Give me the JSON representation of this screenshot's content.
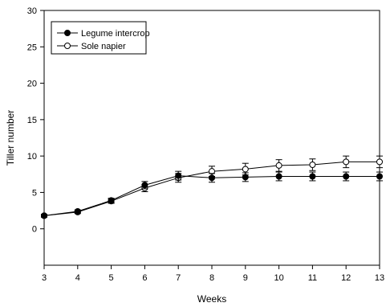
{
  "chart_data": {
    "type": "line",
    "xlabel": "Weeks",
    "ylabel": "Tiller number",
    "xlim": [
      3,
      13
    ],
    "ylim": [
      -5,
      30
    ],
    "x_ticks": [
      3,
      4,
      5,
      6,
      7,
      8,
      9,
      10,
      11,
      12,
      13
    ],
    "y_ticks": [
      0,
      5,
      10,
      15,
      20,
      25,
      30
    ],
    "grid": false,
    "legend_position": "top-left",
    "x": [
      3,
      4,
      5,
      6,
      7,
      8,
      9,
      10,
      11,
      12,
      13
    ],
    "series": [
      {
        "name": "Legume intercrop",
        "marker": "filled-circle",
        "color": "#000000",
        "values": [
          1.8,
          2.4,
          3.9,
          6.0,
          7.3,
          7.0,
          7.1,
          7.2,
          7.2,
          7.2,
          7.2
        ],
        "errors": [
          0.2,
          0.2,
          0.3,
          0.5,
          0.6,
          0.6,
          0.6,
          0.6,
          0.6,
          0.6,
          0.6
        ]
      },
      {
        "name": "Sole napier",
        "marker": "open-circle",
        "color": "#000000",
        "values": [
          1.8,
          2.3,
          3.8,
          5.6,
          7.0,
          7.9,
          8.2,
          8.7,
          8.8,
          9.2,
          9.2
        ],
        "errors": [
          0.2,
          0.2,
          0.3,
          0.5,
          0.6,
          0.7,
          0.8,
          0.8,
          0.8,
          0.8,
          0.8
        ]
      }
    ]
  }
}
